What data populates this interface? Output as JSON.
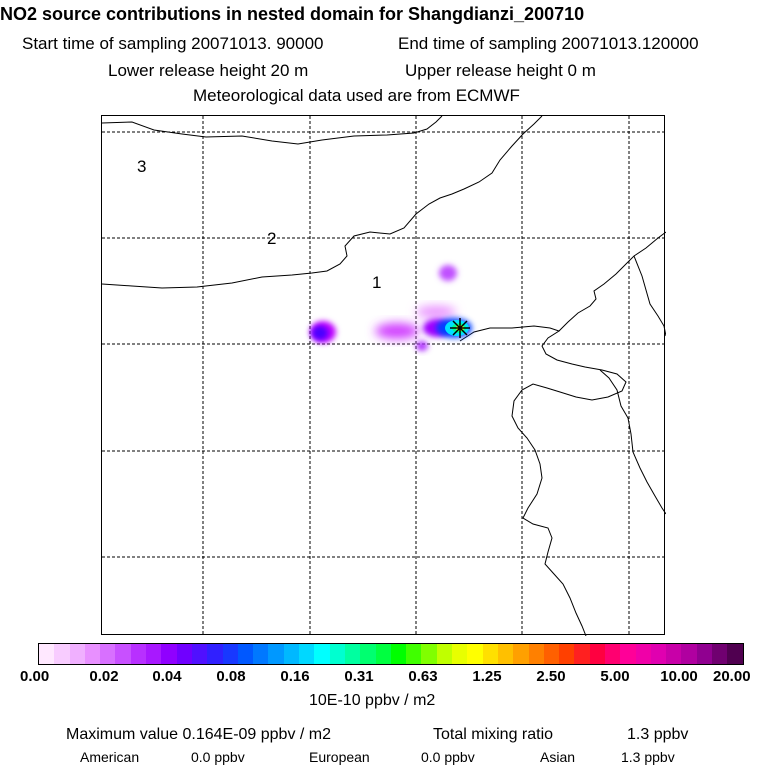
{
  "header": {
    "title": "NO2 source contributions in nested domain for Shangdianzi_200710",
    "start_label": "Start time of sampling 20071013. 90000",
    "end_label": "End time of sampling 20071013.120000",
    "lower_label": "Lower release height   20 m",
    "upper_label": "Upper release height    0 m",
    "met_label": "Meteorological data used are from ECMWF"
  },
  "map": {
    "region_labels": [
      "1",
      "2",
      "3"
    ],
    "source_marker": "station-marker-icon",
    "plume_colors": [
      "#c000ff",
      "#4a00ff",
      "#d040ff",
      "#a000ff",
      "#00e0ff",
      "#00ff90",
      "#ffff00"
    ]
  },
  "colorbar": {
    "colors": [
      "#ffe8ff",
      "#f8ccff",
      "#f0b0ff",
      "#e890ff",
      "#d870ff",
      "#c850ff",
      "#b830ff",
      "#a818ff",
      "#9000ff",
      "#7000ff",
      "#5010ff",
      "#3020ff",
      "#1838ff",
      "#0058ff",
      "#0078ff",
      "#0098ff",
      "#00b8ff",
      "#00d8ff",
      "#00ffff",
      "#00ffd0",
      "#00ffa0",
      "#00ff70",
      "#00ff40",
      "#00ff00",
      "#40ff00",
      "#80ff00",
      "#c0ff00",
      "#e8ff00",
      "#ffff00",
      "#ffe000",
      "#ffc000",
      "#ffa000",
      "#ff8000",
      "#ff6000",
      "#ff4000",
      "#ff2020",
      "#ff0040",
      "#ff0070",
      "#ff0098",
      "#f000a8",
      "#e000b0",
      "#c800a8",
      "#b000a0",
      "#900090",
      "#700070",
      "#500050"
    ],
    "tick_labels": [
      "0.00",
      "0.02",
      "0.04",
      "0.08",
      "0.16",
      "0.31",
      "0.63",
      "1.25",
      "2.50",
      "5.00",
      "10.00",
      "20.00"
    ],
    "unit_label": "10E-10 ppbv / m2"
  },
  "footer": {
    "max_label": "Maximum value  0.164E-09 ppbv / m2",
    "total_label": "Total mixing ratio",
    "total_value": "1.3 ppbv",
    "american_label": "American",
    "american_value": "0.0 ppbv",
    "european_label": "European",
    "european_value": "0.0 ppbv",
    "asian_label": "Asian",
    "asian_value": "1.3 ppbv"
  }
}
